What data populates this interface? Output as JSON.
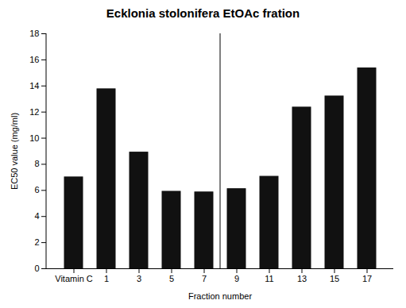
{
  "chart_data": {
    "type": "bar",
    "title": "Ecklonia stolonifera EtOAc fration",
    "xlabel": "Fraction number",
    "ylabel": "EC50 value (mg/ml)",
    "categories": [
      "Vitamin C",
      "1",
      "3",
      "5",
      "7",
      "9",
      "11",
      "13",
      "15",
      "17"
    ],
    "values": [
      7.0,
      13.75,
      8.9,
      5.9,
      5.85,
      6.1,
      7.05,
      12.35,
      13.2,
      15.35
    ],
    "color": "#111111",
    "ylim": [
      0,
      18
    ],
    "yticks": [
      0,
      2,
      4,
      6,
      8,
      10,
      12,
      14,
      16,
      18
    ],
    "grid": false
  }
}
